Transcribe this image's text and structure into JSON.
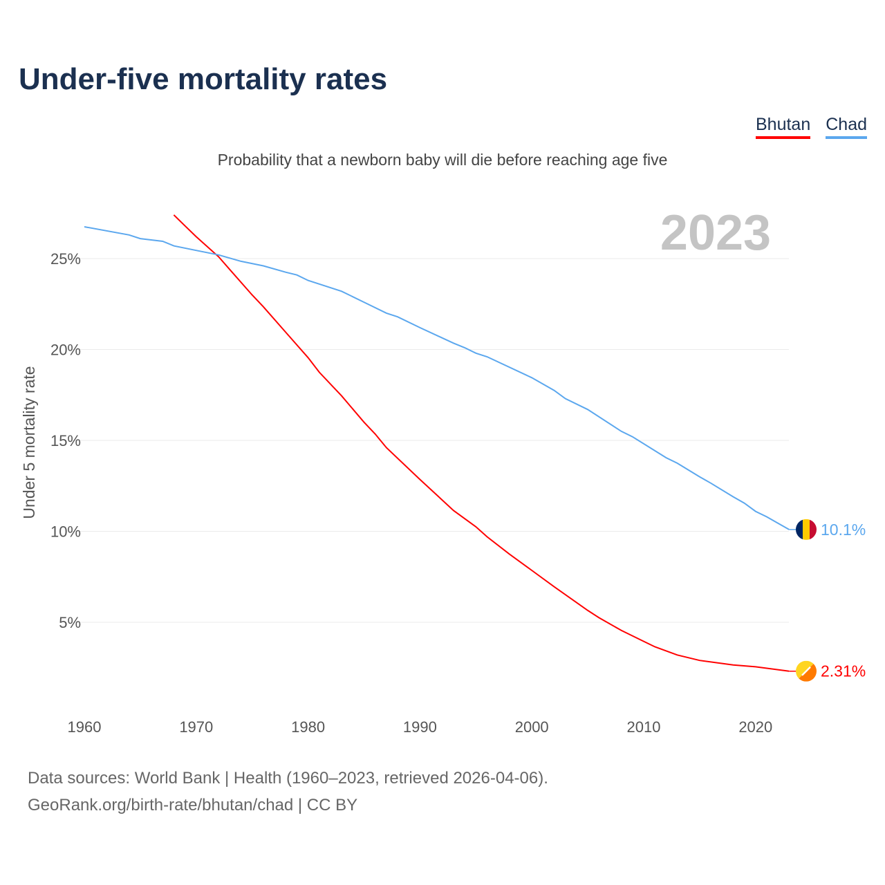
{
  "title": "Under-five mortality rates",
  "subtitle": "Probability that a newborn baby will die before reaching age five",
  "footer": {
    "line1": "Data sources: World Bank | Health (1960–2023, retrieved 2026-04-06).",
    "line2": "GeoRank.org/birth-rate/bhutan/chad | CC BY"
  },
  "chart_data": {
    "type": "line",
    "title": "Under-five mortality rates",
    "ylabel": "Under 5 mortality rate",
    "xlabel": "",
    "year_label": "2023",
    "xlim": [
      1960,
      2023
    ],
    "ylim": [
      0,
      27.5
    ],
    "x_ticks": [
      "1960",
      "1970",
      "1980",
      "1990",
      "2000",
      "2010",
      "2020"
    ],
    "y_ticks": [
      {
        "v": 5,
        "label": "5%"
      },
      {
        "v": 10,
        "label": "10%"
      },
      {
        "v": 15,
        "label": "15%"
      },
      {
        "v": 20,
        "label": "20%"
      },
      {
        "v": 25,
        "label": "25%"
      }
    ],
    "legend": [
      "Bhutan",
      "Chad"
    ],
    "series": [
      {
        "name": "Bhutan",
        "color": "#ff0000",
        "end_label": "2.31%",
        "x": [
          1968,
          1969,
          1970,
          1971,
          1972,
          1973,
          1975,
          1976,
          1978,
          1980,
          1981,
          1983,
          1985,
          1986,
          1987,
          1990,
          1993,
          1995,
          1996,
          1998,
          2000,
          2002,
          2005,
          2006,
          2008,
          2010,
          2011,
          2013,
          2015,
          2018,
          2020,
          2023
        ],
        "y": [
          27.4,
          26.8,
          26.2,
          25.65,
          25.1,
          24.4,
          23.0,
          22.35,
          20.95,
          19.55,
          18.75,
          17.45,
          16.0,
          15.35,
          14.6,
          12.85,
          11.15,
          10.25,
          9.7,
          8.75,
          7.85,
          6.95,
          5.65,
          5.25,
          4.55,
          3.95,
          3.65,
          3.2,
          2.9,
          2.65,
          2.55,
          2.31
        ]
      },
      {
        "name": "Chad",
        "color": "#5ba7ee",
        "end_label": "10.1%",
        "x": [
          1960,
          1964,
          1965,
          1967,
          1968,
          1970,
          1972,
          1974,
          1976,
          1978,
          1979,
          1980,
          1983,
          1985,
          1987,
          1988,
          1990,
          1993,
          1994,
          1995,
          1996,
          2000,
          2001,
          2002,
          2003,
          2005,
          2008,
          2009,
          2012,
          2013,
          2015,
          2016,
          2018,
          2019,
          2020,
          2021,
          2022,
          2023
        ],
        "y": [
          26.75,
          26.3,
          26.1,
          25.95,
          25.7,
          25.45,
          25.2,
          24.85,
          24.6,
          24.25,
          24.1,
          23.8,
          23.2,
          22.6,
          22.0,
          21.8,
          21.2,
          20.35,
          20.1,
          19.8,
          19.6,
          18.45,
          18.1,
          17.75,
          17.3,
          16.7,
          15.5,
          15.2,
          14.05,
          13.75,
          13.0,
          12.65,
          11.9,
          11.55,
          11.1,
          10.8,
          10.45,
          10.1
        ]
      }
    ]
  }
}
